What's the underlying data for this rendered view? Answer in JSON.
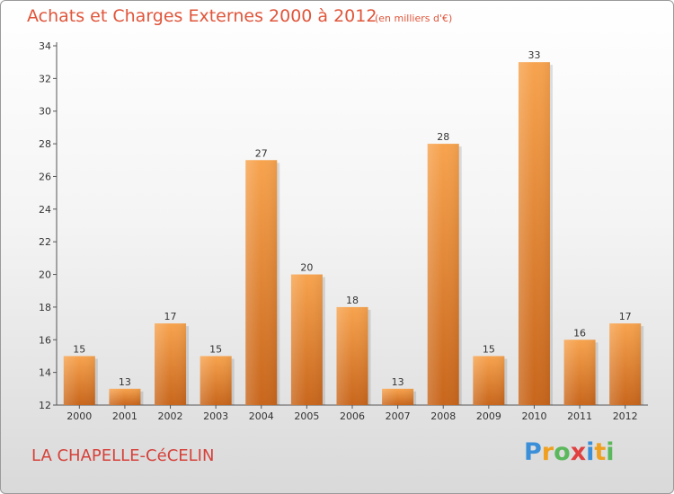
{
  "title": "Achats et Charges Externes 2000 à 2012",
  "subtitle": "(en milliers d'€)",
  "commune": "LA CHAPELLE-CéCELIN",
  "logo": {
    "letters": [
      "P",
      "r",
      "o",
      "x",
      "i",
      "t",
      "i"
    ],
    "colors": [
      "#3a8fd8",
      "#f0a020",
      "#5cb85c",
      "#e04040",
      "#3a8fd8",
      "#f0a020",
      "#5cb85c"
    ]
  },
  "chart_data": {
    "type": "bar",
    "categories": [
      "2000",
      "2001",
      "2002",
      "2003",
      "2004",
      "2005",
      "2006",
      "2007",
      "2008",
      "2009",
      "2010",
      "2011",
      "2012"
    ],
    "values": [
      15,
      13,
      17,
      15,
      27,
      20,
      18,
      13,
      28,
      15,
      33,
      16,
      17
    ],
    "value_labels": [
      "15",
      "13",
      "17",
      "15",
      "27",
      "20",
      "18",
      "13",
      "28",
      "15",
      "33",
      "16",
      "17"
    ],
    "ylim": [
      12,
      34
    ],
    "yticks": [
      12,
      14,
      16,
      18,
      20,
      22,
      24,
      26,
      28,
      30,
      32,
      34
    ],
    "ytick_labels": [
      "12",
      "14",
      "16",
      "18",
      "20",
      "22",
      "24",
      "26",
      "28",
      "30",
      "32",
      "34"
    ],
    "grid": false,
    "bar_color_top": "#f7a34e",
    "bar_color_bottom": "#c8661c"
  }
}
